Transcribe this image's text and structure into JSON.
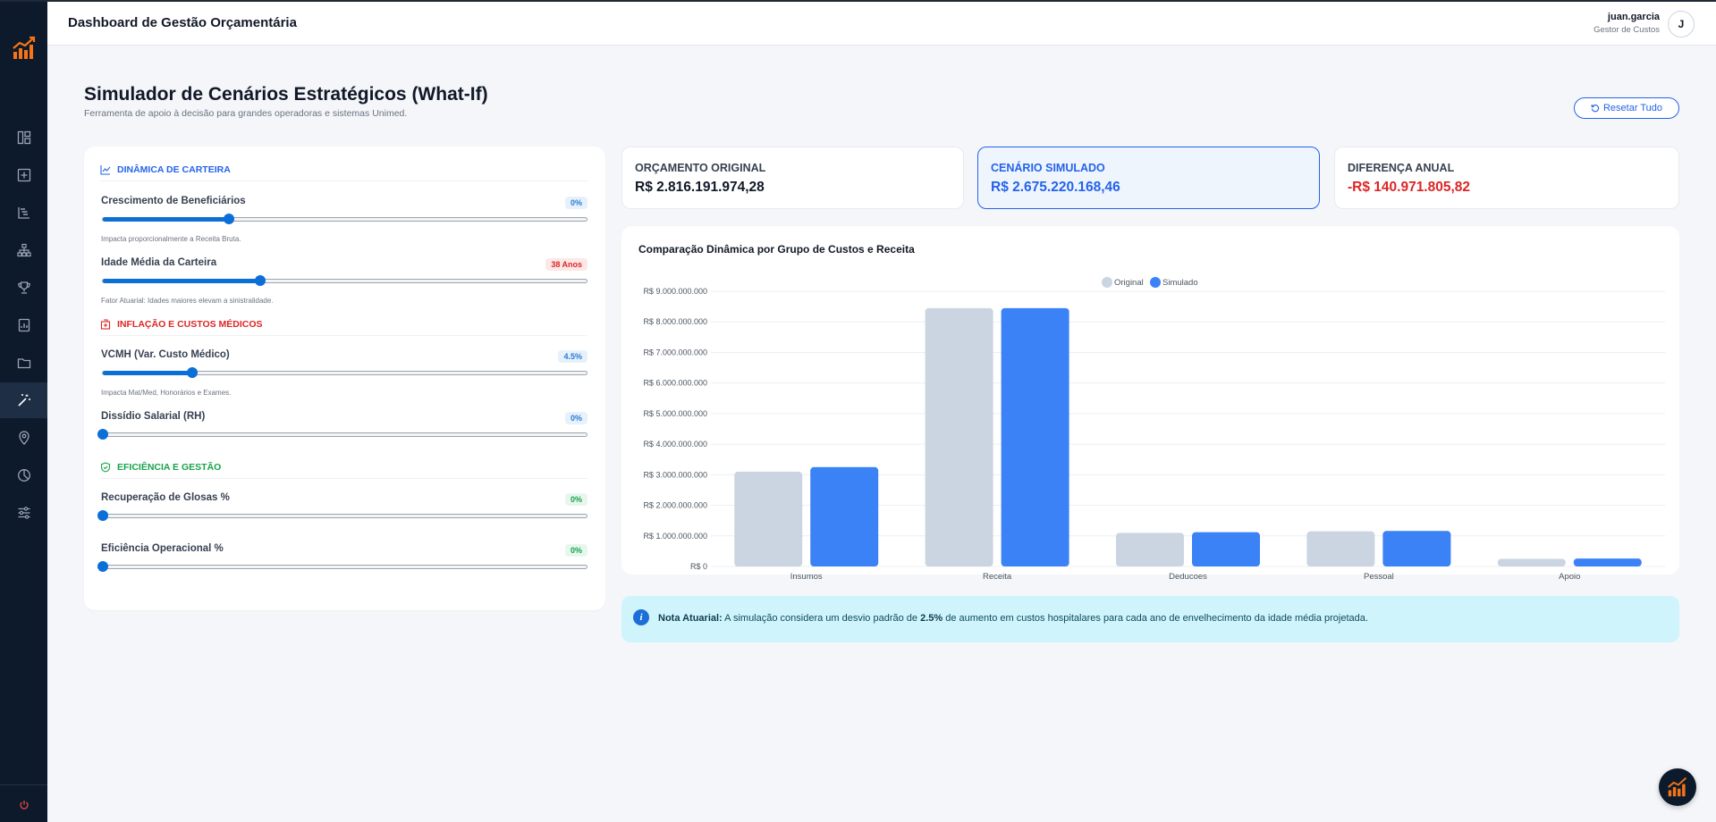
{
  "app": {
    "title": "Dashboard de Gestão Orçamentária",
    "user": {
      "name": "juan.garcia",
      "role": "Gestor de Custos",
      "initial": "J"
    }
  },
  "sidebar": {
    "items": [
      {
        "icon": "dashboard-icon"
      },
      {
        "icon": "plus-square-icon"
      },
      {
        "icon": "hierarchy-list-icon"
      },
      {
        "icon": "sitemap-icon"
      },
      {
        "icon": "trophy-icon"
      },
      {
        "icon": "report-icon"
      },
      {
        "icon": "folder-icon"
      },
      {
        "icon": "magic-wand-icon",
        "active": true
      },
      {
        "icon": "map-pin-icon"
      },
      {
        "icon": "pie-chart-icon"
      },
      {
        "icon": "sliders-icon"
      }
    ]
  },
  "page": {
    "title": "Simulador de Cenários Estratégicos (What-If)",
    "subtitle": "Ferramenta de apoio à decisão para grandes operadoras e sistemas Unimed.",
    "reset_label": "Resetar Tudo"
  },
  "controls": {
    "carteira": {
      "title": "DINÂMICA DE CARTEIRA",
      "growth": {
        "label": "Crescimento de Beneficiários",
        "badge": "0%",
        "position": 0.26,
        "hint": "Impacta proporcionalmente a Receita Bruta."
      },
      "age": {
        "label": "Idade Média da Carteira",
        "badge": "38 Anos",
        "position": 0.325,
        "hint": "Fator Atuarial: Idades maiores elevam a sinistralidade."
      }
    },
    "inflacao": {
      "title": "INFLAÇÃO E CUSTOS MÉDICOS",
      "vcmh": {
        "label": "VCMH (Var. Custo Médico)",
        "badge": "4.5%",
        "position": 0.185,
        "hint": "Impacta Mat/Med, Honorários e Exames."
      },
      "dissidio": {
        "label": "Dissídio Salarial (RH)",
        "badge": "0%",
        "position": 0.0
      }
    },
    "eficiencia": {
      "title": "EFICIÊNCIA E GESTÃO",
      "glosas": {
        "label": "Recuperação de Glosas %",
        "badge": "0%",
        "position": 0.0
      },
      "operacional": {
        "label": "Eficiência Operacional %",
        "badge": "0%",
        "position": 0.0
      }
    }
  },
  "kpis": {
    "original": {
      "label": "ORÇAMENTO ORIGINAL",
      "value": "R$ 2.816.191.974,28"
    },
    "simulado": {
      "label": "CENÁRIO SIMULADO",
      "value": "R$ 2.675.220.168,46"
    },
    "diferenca": {
      "label": "DIFERENÇA ANUAL",
      "value": "-R$ 140.971.805,82"
    }
  },
  "chart_data": {
    "type": "bar",
    "title": "Comparação Dinâmica por Grupo de Custos e Receita",
    "categories": [
      "Insumos",
      "Receita",
      "Deducoes",
      "Pessoal",
      "Apoio"
    ],
    "series": [
      {
        "name": "Original",
        "color": "#cbd5e1",
        "values": [
          3100000000,
          8450000000,
          1100000000,
          1150000000,
          250000000
        ]
      },
      {
        "name": "Simulado",
        "color": "#3b82f6",
        "values": [
          3250000000,
          8450000000,
          1120000000,
          1160000000,
          260000000
        ]
      }
    ],
    "ylim": [
      0,
      9000000000
    ],
    "yticks": [
      "R$ 0",
      "R$ 1.000.000.000",
      "R$ 2.000.000.000",
      "R$ 3.000.000.000",
      "R$ 4.000.000.000",
      "R$ 5.000.000.000",
      "R$ 6.000.000.000",
      "R$ 7.000.000.000",
      "R$ 8.000.000.000",
      "R$ 9.000.000.000"
    ],
    "legend": "top-center",
    "grid": true
  },
  "note": {
    "title": "Nota Atuarial:",
    "text_before": "A simulação considera um desvio padrão de",
    "highlight": "2.5%",
    "text_after": "de aumento em custos hospitalares para cada ano de envelhecimento da idade média projetada."
  }
}
